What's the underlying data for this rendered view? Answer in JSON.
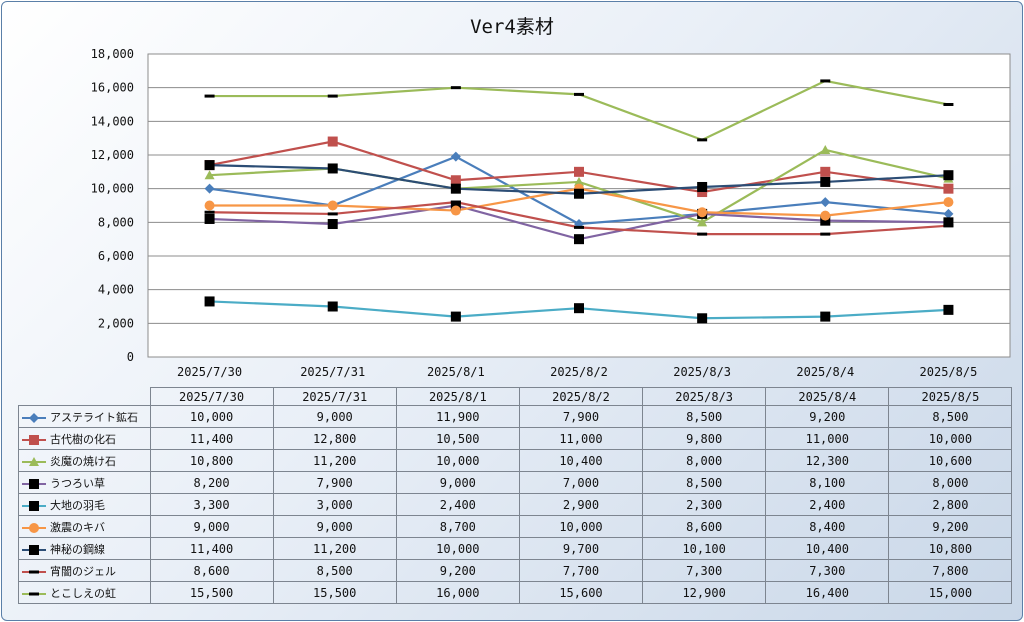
{
  "chart_data": {
    "type": "line",
    "title": "Ver4素材",
    "categories": [
      "2025/7/30",
      "2025/7/31",
      "2025/8/1",
      "2025/8/2",
      "2025/8/3",
      "2025/8/4",
      "2025/8/5"
    ],
    "ylim": [
      0,
      18000
    ],
    "yticks": [
      0,
      2000,
      4000,
      6000,
      8000,
      10000,
      12000,
      14000,
      16000,
      18000
    ],
    "ytick_labels": [
      "0",
      "2,000",
      "4,000",
      "6,000",
      "8,000",
      "10,000",
      "12,000",
      "14,000",
      "16,000",
      "18,000"
    ],
    "grid": true,
    "legend": "data-table-below",
    "series": [
      {
        "name": "アステライト鉱石",
        "color": "#4a7ebb",
        "marker": "diamond",
        "values": [
          10000,
          9000,
          11900,
          7900,
          8500,
          9200,
          8500
        ],
        "labels": [
          "10,000",
          "9,000",
          "11,900",
          "7,900",
          "8,500",
          "9,200",
          "8,500"
        ]
      },
      {
        "name": "古代樹の化石",
        "color": "#c0504d",
        "marker": "square",
        "values": [
          11400,
          12800,
          10500,
          11000,
          9800,
          11000,
          10000
        ],
        "labels": [
          "11,400",
          "12,800",
          "10,500",
          "11,000",
          "9,800",
          "11,000",
          "10,000"
        ]
      },
      {
        "name": "炎魔の焼け石",
        "color": "#9bbb59",
        "marker": "triangle",
        "values": [
          10800,
          11200,
          10000,
          10400,
          8000,
          12300,
          10600
        ],
        "labels": [
          "10,800",
          "11,200",
          "10,000",
          "10,400",
          "8,000",
          "12,300",
          "10,600"
        ]
      },
      {
        "name": "うつろい草",
        "color": "#8064a2",
        "marker": "square-black",
        "values": [
          8200,
          7900,
          9000,
          7000,
          8500,
          8100,
          8000
        ],
        "labels": [
          "8,200",
          "7,900",
          "9,000",
          "7,000",
          "8,500",
          "8,100",
          "8,000"
        ]
      },
      {
        "name": "大地の羽毛",
        "color": "#4bacc6",
        "marker": "square-black",
        "values": [
          3300,
          3000,
          2400,
          2900,
          2300,
          2400,
          2800
        ],
        "labels": [
          "3,300",
          "3,000",
          "2,400",
          "2,900",
          "2,300",
          "2,400",
          "2,800"
        ]
      },
      {
        "name": "激震のキバ",
        "color": "#f79646",
        "marker": "circle",
        "values": [
          9000,
          9000,
          8700,
          10000,
          8600,
          8400,
          9200
        ],
        "labels": [
          "9,000",
          "9,000",
          "8,700",
          "10,000",
          "8,600",
          "8,400",
          "9,200"
        ]
      },
      {
        "name": "神秘の鋼線",
        "color": "#2c4d75",
        "marker": "square-black",
        "values": [
          11400,
          11200,
          10000,
          9700,
          10100,
          10400,
          10800
        ],
        "labels": [
          "11,400",
          "11,200",
          "10,000",
          "9,700",
          "10,100",
          "10,400",
          "10,800"
        ]
      },
      {
        "name": "宵闇のジェル",
        "color": "#c0504d",
        "marker": "dash",
        "values": [
          8600,
          8500,
          9200,
          7700,
          7300,
          7300,
          7800
        ],
        "labels": [
          "8,600",
          "8,500",
          "9,200",
          "7,700",
          "7,300",
          "7,300",
          "7,800"
        ]
      },
      {
        "name": "とこしえの虹",
        "color": "#9bbb59",
        "marker": "dash",
        "values": [
          15500,
          15500,
          16000,
          15600,
          12900,
          16400,
          15000
        ],
        "labels": [
          "15,500",
          "15,500",
          "16,000",
          "15,600",
          "12,900",
          "16,400",
          "15,000"
        ]
      }
    ]
  }
}
